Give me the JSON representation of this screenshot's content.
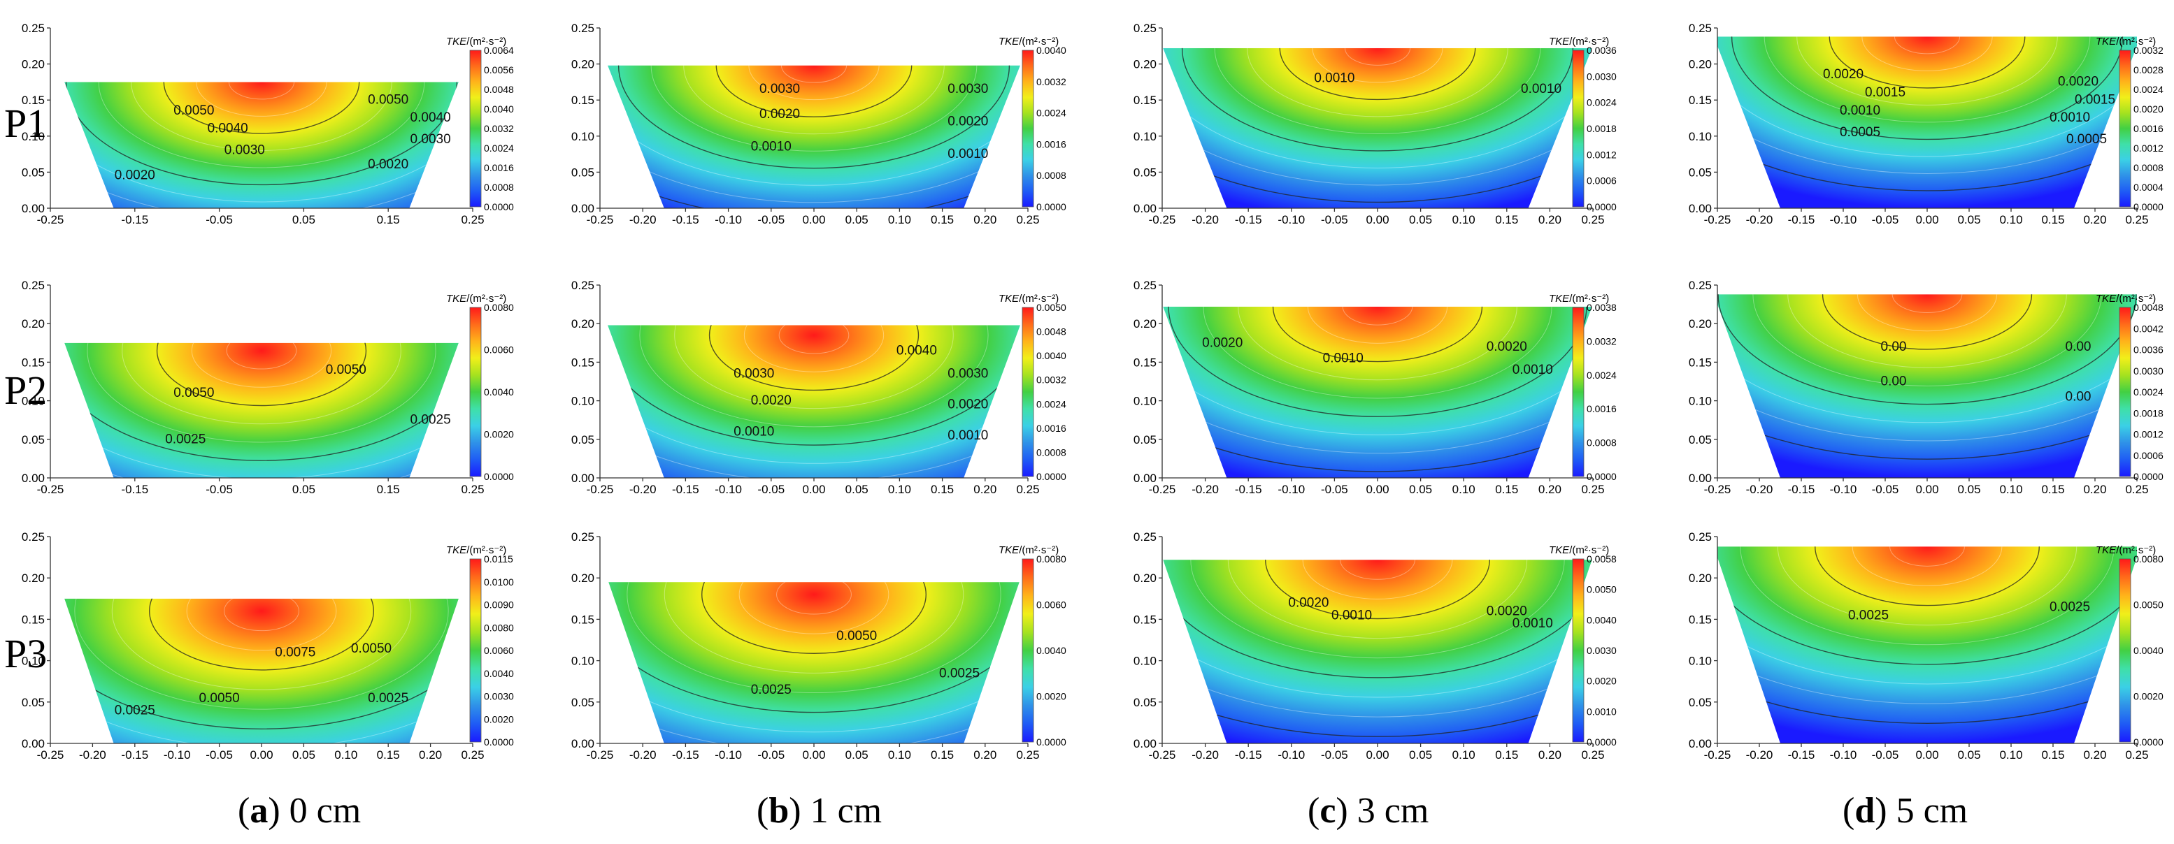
{
  "figure": {
    "row_labels": [
      "P1",
      "P2",
      "P3"
    ],
    "captions": [
      {
        "letter": "a",
        "rest": ") 0 cm"
      },
      {
        "letter": "b",
        "rest": ") 1 cm"
      },
      {
        "letter": "c",
        "rest": ") 3 cm"
      },
      {
        "letter": "d",
        "rest": ") 5 cm"
      }
    ],
    "colorbar_title_main": "TKE",
    "colorbar_title_unit": "/(m²·s⁻²)"
  },
  "colors": {
    "ramp": [
      "#1a1aff",
      "#1f5cf5",
      "#2f92e8",
      "#3bd0e6",
      "#3fe0a8",
      "#42d043",
      "#a6e21f",
      "#f1ef1a",
      "#ffb31a",
      "#ff6b1a",
      "#ff1a1a"
    ]
  },
  "chart_data": [
    {
      "type": "heatmap",
      "row": "P1",
      "column": "(a) 0 cm",
      "xlim": [
        -0.25,
        0.25
      ],
      "ylim": [
        0,
        0.25
      ],
      "water_depth": 0.175,
      "peak": 0.0064,
      "peak_x": 0,
      "peak_y": 0.175,
      "x_ticks": [
        "-0.25",
        "-0.15",
        "-0.05",
        "0.05",
        "0.15",
        "0.25"
      ],
      "y_ticks": [
        "0.00",
        "0.05",
        "0.10",
        "0.15",
        "0.20",
        "0.25"
      ],
      "colorbar_ticks": [
        "0.0064",
        "0.0056",
        "0.0048",
        "0.0040",
        "0.0032",
        "0.0024",
        "0.0016",
        "0.0008",
        "0.0000"
      ],
      "contour_labels": [
        {
          "text": "0.0050",
          "x": -0.08,
          "y": 0.13
        },
        {
          "text": "0.0050",
          "x": 0.15,
          "y": 0.145
        },
        {
          "text": "0.0040",
          "x": -0.04,
          "y": 0.105
        },
        {
          "text": "0.0040",
          "x": 0.2,
          "y": 0.12
        },
        {
          "text": "0.0030",
          "x": -0.02,
          "y": 0.075
        },
        {
          "text": "0.0030",
          "x": 0.2,
          "y": 0.09
        },
        {
          "text": "0.0020",
          "x": -0.15,
          "y": 0.04
        },
        {
          "text": "0.0020",
          "x": 0.15,
          "y": 0.055
        }
      ]
    },
    {
      "type": "heatmap",
      "row": "P1",
      "column": "(b) 1 cm",
      "xlim": [
        -0.25,
        0.25
      ],
      "ylim": [
        0,
        0.25
      ],
      "water_depth": 0.198,
      "peak": 0.004,
      "peak_x": 0,
      "peak_y": 0.198,
      "x_ticks": [
        "-0.25",
        "-0.20",
        "-0.15",
        "-0.10",
        "-0.05",
        "0.00",
        "0.05",
        "0.10",
        "0.15",
        "0.20",
        "0.25"
      ],
      "y_ticks": [
        "0.00",
        "0.05",
        "0.10",
        "0.15",
        "0.20",
        "0.25"
      ],
      "colorbar_ticks": [
        "0.0040",
        "0.0032",
        "0.0024",
        "0.0016",
        "0.0008",
        "0.0000"
      ],
      "contour_labels": [
        {
          "text": "0.0030",
          "x": -0.04,
          "y": 0.16
        },
        {
          "text": "0.0030",
          "x": 0.18,
          "y": 0.16
        },
        {
          "text": "0.0020",
          "x": -0.04,
          "y": 0.125
        },
        {
          "text": "0.0020",
          "x": 0.18,
          "y": 0.115
        },
        {
          "text": "0.0010",
          "x": -0.05,
          "y": 0.08
        },
        {
          "text": "0.0010",
          "x": 0.18,
          "y": 0.07
        }
      ]
    },
    {
      "type": "heatmap",
      "row": "P1",
      "column": "(c) 3 cm",
      "xlim": [
        -0.25,
        0.25
      ],
      "ylim": [
        0,
        0.25
      ],
      "water_depth": 0.222,
      "peak": 0.0036,
      "peak_x": 0,
      "peak_y": 0.222,
      "x_ticks": [
        "-0.25",
        "-0.20",
        "-0.15",
        "-0.10",
        "-0.05",
        "0.00",
        "0.05",
        "0.10",
        "0.15",
        "0.20",
        "0.25"
      ],
      "y_ticks": [
        "0.00",
        "0.05",
        "0.10",
        "0.15",
        "0.20",
        "0.25"
      ],
      "colorbar_ticks": [
        "0.0036",
        "0.0030",
        "0.0024",
        "0.0018",
        "0.0012",
        "0.0006",
        "0.0000"
      ],
      "contour_labels": [
        {
          "text": "0.0010",
          "x": -0.05,
          "y": 0.175
        },
        {
          "text": "0.0010",
          "x": 0.19,
          "y": 0.16
        }
      ]
    },
    {
      "type": "heatmap",
      "row": "P1",
      "column": "(d) 5 cm",
      "xlim": [
        -0.25,
        0.25
      ],
      "ylim": [
        0,
        0.25
      ],
      "water_depth": 0.238,
      "peak": 0.0032,
      "peak_x": 0,
      "peak_y": 0.238,
      "x_ticks": [
        "-0.25",
        "-0.20",
        "-0.15",
        "-0.10",
        "-0.05",
        "0.00",
        "0.05",
        "0.10",
        "0.15",
        "0.20",
        "0.25"
      ],
      "y_ticks": [
        "0.00",
        "0.05",
        "0.10",
        "0.15",
        "0.20",
        "0.25"
      ],
      "colorbar_ticks": [
        "0.0032",
        "0.0028",
        "0.0024",
        "0.0020",
        "0.0016",
        "0.0012",
        "0.0008",
        "0.0004",
        "0.0000"
      ],
      "contour_labels": [
        {
          "text": "0.0020",
          "x": -0.1,
          "y": 0.18
        },
        {
          "text": "0.0020",
          "x": 0.18,
          "y": 0.17
        },
        {
          "text": "0.0015",
          "x": -0.05,
          "y": 0.155
        },
        {
          "text": "0.0015",
          "x": 0.2,
          "y": 0.145
        },
        {
          "text": "0.0010",
          "x": -0.08,
          "y": 0.13
        },
        {
          "text": "0.0010",
          "x": 0.17,
          "y": 0.12
        },
        {
          "text": "0.0005",
          "x": -0.08,
          "y": 0.1
        },
        {
          "text": "0.0005",
          "x": 0.19,
          "y": 0.09
        }
      ]
    },
    {
      "type": "heatmap",
      "row": "P2",
      "column": "(a) 0 cm",
      "xlim": [
        -0.25,
        0.25
      ],
      "ylim": [
        0,
        0.25
      ],
      "water_depth": 0.175,
      "peak": 0.008,
      "peak_x": 0,
      "peak_y": 0.165,
      "x_ticks": [
        "-0.25",
        "-0.15",
        "-0.05",
        "0.05",
        "0.15",
        "0.25"
      ],
      "y_ticks": [
        "0.00",
        "0.05",
        "0.10",
        "0.15",
        "0.20",
        "0.25"
      ],
      "colorbar_ticks": [
        "0.0080",
        "0.0060",
        "0.0040",
        "0.0020",
        "0.0000"
      ],
      "contour_labels": [
        {
          "text": "0.0050",
          "x": 0.1,
          "y": 0.135
        },
        {
          "text": "0.0050",
          "x": -0.08,
          "y": 0.105
        },
        {
          "text": "0.0025",
          "x": -0.09,
          "y": 0.045
        },
        {
          "text": "0.0025",
          "x": 0.2,
          "y": 0.07
        }
      ]
    },
    {
      "type": "heatmap",
      "row": "P2",
      "column": "(b) 1 cm",
      "xlim": [
        -0.25,
        0.25
      ],
      "ylim": [
        0,
        0.25
      ],
      "water_depth": 0.198,
      "peak": 0.005,
      "peak_x": 0,
      "peak_y": 0.185,
      "x_ticks": [
        "-0.25",
        "-0.20",
        "-0.15",
        "-0.10",
        "-0.05",
        "0.00",
        "0.05",
        "0.10",
        "0.15",
        "0.20",
        "0.25"
      ],
      "y_ticks": [
        "0.00",
        "0.05",
        "0.10",
        "0.15",
        "0.20",
        "0.25"
      ],
      "colorbar_ticks": [
        "0.0050",
        "0.0048",
        "0.0040",
        "0.0032",
        "0.0024",
        "0.0016",
        "0.0008",
        "0.0000"
      ],
      "contour_labels": [
        {
          "text": "0.0040",
          "x": 0.12,
          "y": 0.16
        },
        {
          "text": "0.0030",
          "x": -0.07,
          "y": 0.13
        },
        {
          "text": "0.0030",
          "x": 0.18,
          "y": 0.13
        },
        {
          "text": "0.0020",
          "x": -0.05,
          "y": 0.095
        },
        {
          "text": "0.0020",
          "x": 0.18,
          "y": 0.09
        },
        {
          "text": "0.0010",
          "x": -0.07,
          "y": 0.055
        },
        {
          "text": "0.0010",
          "x": 0.18,
          "y": 0.05
        }
      ]
    },
    {
      "type": "heatmap",
      "row": "P2",
      "column": "(c) 3 cm",
      "xlim": [
        -0.25,
        0.25
      ],
      "ylim": [
        0,
        0.25
      ],
      "water_depth": 0.222,
      "peak": 0.0038,
      "peak_x": 0,
      "peak_y": 0.222,
      "x_ticks": [
        "-0.25",
        "-0.20",
        "-0.15",
        "-0.10",
        "-0.05",
        "0.00",
        "0.05",
        "0.10",
        "0.15",
        "0.20",
        "0.25"
      ],
      "y_ticks": [
        "0.00",
        "0.05",
        "0.10",
        "0.15",
        "0.20",
        "0.25"
      ],
      "colorbar_ticks": [
        "0.0038",
        "0.0032",
        "0.0024",
        "0.0016",
        "0.0008",
        "0.0000"
      ],
      "contour_labels": [
        {
          "text": "0.0020",
          "x": -0.18,
          "y": 0.17
        },
        {
          "text": "0.0020",
          "x": 0.15,
          "y": 0.165
        },
        {
          "text": "0.0010",
          "x": -0.04,
          "y": 0.15
        },
        {
          "text": "0.0010",
          "x": 0.18,
          "y": 0.135
        }
      ]
    },
    {
      "type": "heatmap",
      "row": "P2",
      "column": "(d) 5 cm",
      "xlim": [
        -0.25,
        0.25
      ],
      "ylim": [
        0,
        0.25
      ],
      "water_depth": 0.238,
      "peak": 0.0048,
      "peak_x": 0,
      "peak_y": 0.238,
      "x_ticks": [
        "-0.25",
        "-0.20",
        "-0.15",
        "-0.10",
        "-0.05",
        "0.00",
        "0.05",
        "0.10",
        "0.15",
        "0.20",
        "0.25"
      ],
      "y_ticks": [
        "0.00",
        "0.05",
        "0.10",
        "0.15",
        "0.20",
        "0.25"
      ],
      "colorbar_ticks": [
        "0.0048",
        "0.0042",
        "0.0036",
        "0.0030",
        "0.0024",
        "0.0018",
        "0.0012",
        "0.0006",
        "0.0000"
      ],
      "contour_labels": [
        {
          "text": "0.00",
          "x": -0.04,
          "y": 0.165
        },
        {
          "text": "0.00",
          "x": 0.18,
          "y": 0.165
        },
        {
          "text": "0.00",
          "x": -0.04,
          "y": 0.12
        },
        {
          "text": "0.00",
          "x": 0.18,
          "y": 0.1
        }
      ]
    },
    {
      "type": "heatmap",
      "row": "P3",
      "column": "(a) 0 cm",
      "xlim": [
        -0.25,
        0.25
      ],
      "ylim": [
        0,
        0.25
      ],
      "water_depth": 0.175,
      "peak": 0.0115,
      "peak_x": 0,
      "peak_y": 0.16,
      "x_ticks": [
        "-0.25",
        "-0.20",
        "-0.15",
        "-0.10",
        "-0.05",
        "0.00",
        "0.05",
        "0.10",
        "0.15",
        "0.20",
        "0.25"
      ],
      "y_ticks": [
        "0.00",
        "0.05",
        "0.10",
        "0.15",
        "0.20",
        "0.25"
      ],
      "colorbar_ticks": [
        "0.0115",
        "0.0100",
        "0.0090",
        "0.0080",
        "0.0060",
        "0.0040",
        "0.0030",
        "0.0020",
        "0.0000"
      ],
      "contour_labels": [
        {
          "text": "0.0075",
          "x": 0.04,
          "y": 0.105
        },
        {
          "text": "0.0050",
          "x": 0.13,
          "y": 0.11
        },
        {
          "text": "0.0050",
          "x": -0.05,
          "y": 0.05
        },
        {
          "text": "0.0025",
          "x": -0.15,
          "y": 0.035
        },
        {
          "text": "0.0025",
          "x": 0.15,
          "y": 0.05
        }
      ]
    },
    {
      "type": "heatmap",
      "row": "P3",
      "column": "(b) 1 cm",
      "xlim": [
        -0.25,
        0.25
      ],
      "ylim": [
        0,
        0.25
      ],
      "water_depth": 0.195,
      "peak": 0.008,
      "peak_x": 0,
      "peak_y": 0.18,
      "x_ticks": [
        "-0.25",
        "-0.20",
        "-0.15",
        "-0.10",
        "-0.05",
        "0.00",
        "0.05",
        "0.10",
        "0.15",
        "0.20",
        "0.25"
      ],
      "y_ticks": [
        "0.00",
        "0.05",
        "0.10",
        "0.15",
        "0.20",
        "0.25"
      ],
      "colorbar_ticks": [
        "0.0080",
        "0.0060",
        "0.0040",
        "0.0020",
        "0.0000"
      ],
      "contour_labels": [
        {
          "text": "0.0050",
          "x": 0.05,
          "y": 0.125
        },
        {
          "text": "0.0025",
          "x": -0.05,
          "y": 0.06
        },
        {
          "text": "0.0025",
          "x": 0.17,
          "y": 0.08
        }
      ]
    },
    {
      "type": "heatmap",
      "row": "P3",
      "column": "(c) 3 cm",
      "xlim": [
        -0.25,
        0.25
      ],
      "ylim": [
        0,
        0.25
      ],
      "water_depth": 0.222,
      "peak": 0.0058,
      "peak_x": 0,
      "peak_y": 0.222,
      "x_ticks": [
        "-0.25",
        "-0.20",
        "-0.15",
        "-0.10",
        "-0.05",
        "0.00",
        "0.05",
        "0.10",
        "0.15",
        "0.20",
        "0.25"
      ],
      "y_ticks": [
        "0.00",
        "0.05",
        "0.10",
        "0.15",
        "0.20",
        "0.25"
      ],
      "colorbar_ticks": [
        "0.0058",
        "0.0050",
        "0.0040",
        "0.0030",
        "0.0020",
        "0.0010",
        "0.0000"
      ],
      "contour_labels": [
        {
          "text": "0.0020",
          "x": -0.08,
          "y": 0.165
        },
        {
          "text": "0.0020",
          "x": 0.15,
          "y": 0.155
        },
        {
          "text": "0.0010",
          "x": -0.03,
          "y": 0.15
        },
        {
          "text": "0.0010",
          "x": 0.18,
          "y": 0.14
        }
      ]
    },
    {
      "type": "heatmap",
      "row": "P3",
      "column": "(d) 5 cm",
      "xlim": [
        -0.25,
        0.25
      ],
      "ylim": [
        0,
        0.25
      ],
      "water_depth": 0.238,
      "peak": 0.008,
      "peak_x": 0,
      "peak_y": 0.238,
      "x_ticks": [
        "-0.25",
        "-0.20",
        "-0.15",
        "-0.10",
        "-0.05",
        "0.00",
        "0.05",
        "0.10",
        "0.15",
        "0.20",
        "0.25"
      ],
      "y_ticks": [
        "0.00",
        "0.05",
        "0.10",
        "0.15",
        "0.20",
        "0.25"
      ],
      "colorbar_ticks": [
        "0.0080",
        "0.0050",
        "0.0040",
        "0.0020",
        "0.0000"
      ],
      "contour_labels": [
        {
          "text": "0.0025",
          "x": -0.07,
          "y": 0.15
        },
        {
          "text": "0.0025",
          "x": 0.17,
          "y": 0.16
        }
      ]
    }
  ]
}
